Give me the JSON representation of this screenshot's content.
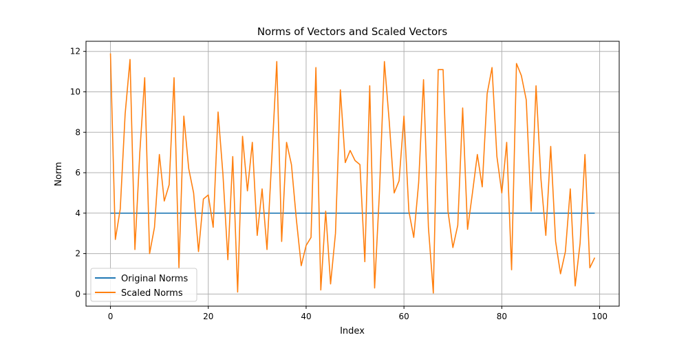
{
  "chart_data": {
    "type": "line",
    "title": "Norms of Vectors and Scaled Vectors",
    "xlabel": "Index",
    "ylabel": "Norm",
    "xlim": [
      -5,
      104
    ],
    "ylim": [
      -0.6,
      12.5
    ],
    "xticks": [
      0,
      20,
      40,
      60,
      80,
      100
    ],
    "yticks": [
      0,
      2,
      4,
      6,
      8,
      10,
      12
    ],
    "grid": true,
    "legend_position": "lower-left",
    "x": [
      0,
      1,
      2,
      3,
      4,
      5,
      6,
      7,
      8,
      9,
      10,
      11,
      12,
      13,
      14,
      15,
      16,
      17,
      18,
      19,
      20,
      21,
      22,
      23,
      24,
      25,
      26,
      27,
      28,
      29,
      30,
      31,
      32,
      33,
      34,
      35,
      36,
      37,
      38,
      39,
      40,
      41,
      42,
      43,
      44,
      45,
      46,
      47,
      48,
      49,
      50,
      51,
      52,
      53,
      54,
      55,
      56,
      57,
      58,
      59,
      60,
      61,
      62,
      63,
      64,
      65,
      66,
      67,
      68,
      69,
      70,
      71,
      72,
      73,
      74,
      75,
      76,
      77,
      78,
      79,
      80,
      81,
      82,
      83,
      84,
      85,
      86,
      87,
      88,
      89,
      90,
      91,
      92,
      93,
      94,
      95,
      96,
      97,
      98,
      99
    ],
    "series": [
      {
        "name": "Original Norms",
        "color": "#1f77b4",
        "values": [
          4,
          4,
          4,
          4,
          4,
          4,
          4,
          4,
          4,
          4,
          4,
          4,
          4,
          4,
          4,
          4,
          4,
          4,
          4,
          4,
          4,
          4,
          4,
          4,
          4,
          4,
          4,
          4,
          4,
          4,
          4,
          4,
          4,
          4,
          4,
          4,
          4,
          4,
          4,
          4,
          4,
          4,
          4,
          4,
          4,
          4,
          4,
          4,
          4,
          4,
          4,
          4,
          4,
          4,
          4,
          4,
          4,
          4,
          4,
          4,
          4,
          4,
          4,
          4,
          4,
          4,
          4,
          4,
          4,
          4,
          4,
          4,
          4,
          4,
          4,
          4,
          4,
          4,
          4,
          4,
          4,
          4,
          4,
          4,
          4,
          4,
          4,
          4,
          4,
          4,
          4,
          4,
          4,
          4,
          4,
          4,
          4,
          4,
          4,
          4
        ]
      },
      {
        "name": "Scaled Norms",
        "color": "#ff7f0e",
        "values": [
          11.9,
          2.7,
          4.2,
          8.9,
          11.6,
          2.2,
          7.0,
          10.7,
          2.0,
          3.3,
          6.9,
          4.6,
          5.4,
          10.7,
          1.3,
          8.8,
          6.2,
          5.0,
          2.1,
          4.7,
          4.9,
          3.3,
          9.0,
          5.9,
          1.7,
          6.8,
          0.1,
          7.8,
          5.1,
          7.5,
          2.9,
          5.2,
          2.2,
          6.8,
          11.5,
          2.6,
          7.5,
          6.4,
          3.7,
          1.4,
          2.4,
          2.8,
          11.2,
          0.2,
          4.1,
          0.5,
          3.0,
          10.1,
          6.5,
          7.1,
          6.6,
          6.4,
          1.6,
          10.3,
          0.3,
          5.1,
          11.5,
          8.5,
          5.0,
          5.6,
          8.8,
          4.1,
          2.8,
          5.5,
          10.6,
          3.3,
          0.05,
          11.1,
          11.1,
          4.1,
          2.3,
          3.4,
          9.2,
          3.2,
          5.0,
          6.9,
          5.3,
          9.9,
          11.2,
          6.8,
          5.0,
          7.5,
          1.2,
          11.4,
          10.8,
          9.6,
          4.1,
          10.3,
          5.7,
          2.9,
          7.3,
          2.6,
          1.0,
          2.1,
          5.2,
          0.4,
          2.5,
          6.9,
          1.3,
          1.8
        ]
      }
    ]
  }
}
